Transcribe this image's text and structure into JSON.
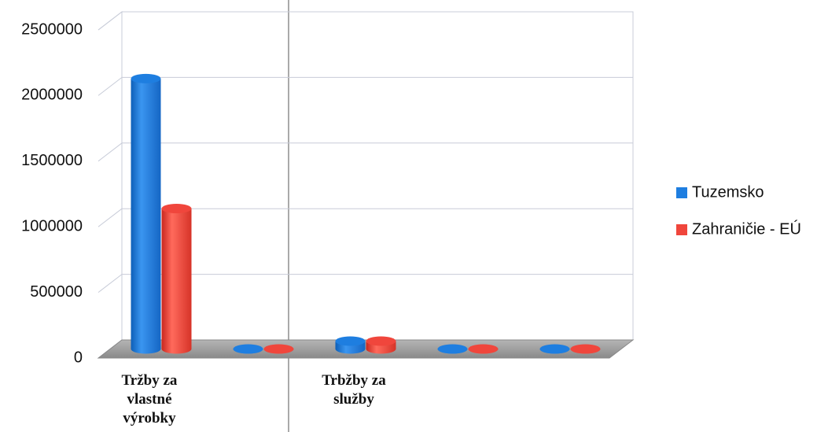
{
  "chart_data": {
    "type": "bar3d",
    "categories": [
      "Tržby za vlastné výrobky",
      null,
      "Trbžby za služby",
      null,
      null
    ],
    "series": [
      {
        "name": "Tuzemsko",
        "color": "#1e7ee0",
        "values": [
          2060000,
          0,
          60000,
          0,
          0
        ]
      },
      {
        "name": "Zahraničie - EÚ",
        "color": "#f0463c",
        "values": [
          1070000,
          0,
          60000,
          0,
          0
        ]
      }
    ],
    "ylim": [
      0,
      2500000
    ],
    "yticks": [
      0,
      500000,
      1000000,
      1500000,
      2000000,
      2500000
    ],
    "grid": true,
    "legend": "right"
  }
}
